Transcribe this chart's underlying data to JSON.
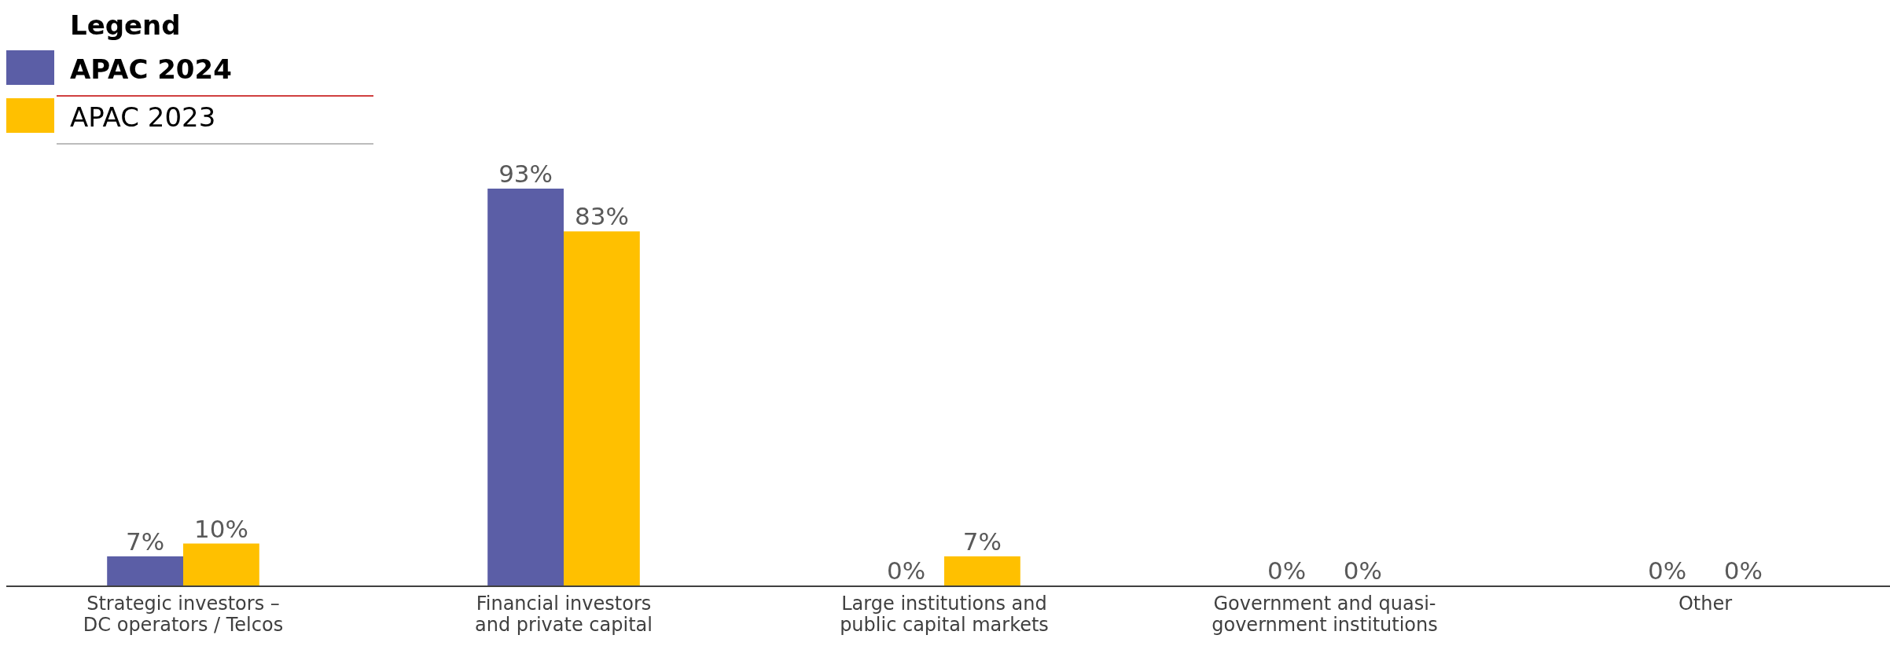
{
  "chart_data": {
    "type": "bar",
    "categories": [
      "Strategic investors – DC operators / Telcos",
      "Financial investors and private capital",
      "Large institutions and public capital markets",
      "Government and quasi-government institutions",
      "Other"
    ],
    "series": [
      {
        "name": "APAC 2024",
        "color": "#5b5ea6",
        "values": [
          7,
          93,
          0,
          0,
          0
        ],
        "value_labels": [
          "7%",
          "93%",
          "0%",
          "0%",
          "0%"
        ]
      },
      {
        "name": "APAC 2023",
        "color": "#ffc000",
        "values": [
          10,
          83,
          7,
          0,
          0
        ],
        "value_labels": [
          "10%",
          "83%",
          "7%",
          "0%",
          "0%"
        ]
      }
    ],
    "legend": "top left",
    "legend_title": "Legend"
  }
}
